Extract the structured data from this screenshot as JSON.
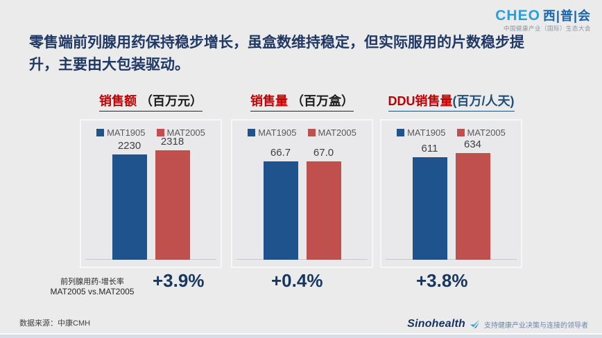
{
  "slide": {
    "headline": "零售端前列腺用药保持稳步增长，虽盒数维持稳定，但实际服用的片数稳步提升，主要由大包装驱动。",
    "footer_source": "数据来源：中康CMH"
  },
  "logo_cheo": {
    "name": "CHEO",
    "cn": "西|普|会",
    "tagline": "中国健康产业（国际）生态大会"
  },
  "logo_sinohealth": {
    "name": "Sinohealth",
    "tagline": "支持健康产业决策与连接的领导者"
  },
  "growth_note": {
    "line1": "前列腺用药-增长率",
    "line2": "MAT2005 vs.MAT2005"
  },
  "colors": {
    "bar_blue": "#1f538e",
    "bar_red": "#c0504d",
    "title_red": "#c00000",
    "title_dark": "#1a1a1a",
    "title_blue": "#1f4e79",
    "headline_navy": "#1f3864",
    "percent_navy": "#17375e"
  },
  "chart_data": [
    {
      "type": "bar",
      "title_main": "销售额",
      "title_unit": " （百万元）",
      "unit_color": "dark",
      "categories": [
        "MAT1905",
        "MAT2005"
      ],
      "values": [
        2230,
        2318
      ],
      "value_labels": [
        "2230",
        "2318"
      ],
      "ylim": [
        0,
        2500
      ],
      "legend_position": "top",
      "grid": false,
      "growth": "+3.9%"
    },
    {
      "type": "bar",
      "title_main": "销售量",
      "title_unit": " （百万盒）",
      "unit_color": "dark",
      "categories": [
        "MAT1905",
        "MAT2005"
      ],
      "values": [
        66.7,
        67.0
      ],
      "value_labels": [
        "66.7",
        "67.0"
      ],
      "ylim": [
        0,
        80
      ],
      "legend_position": "top",
      "grid": false,
      "growth": "+0.4%"
    },
    {
      "type": "bar",
      "title_main": "DDU销售量",
      "title_unit": "(百万/人天)",
      "unit_color": "blue",
      "categories": [
        "MAT1905",
        "MAT2005"
      ],
      "values": [
        611,
        634
      ],
      "value_labels": [
        "611",
        "634"
      ],
      "ylim": [
        0,
        700
      ],
      "legend_position": "top",
      "grid": false,
      "growth": "+3.8%"
    }
  ]
}
